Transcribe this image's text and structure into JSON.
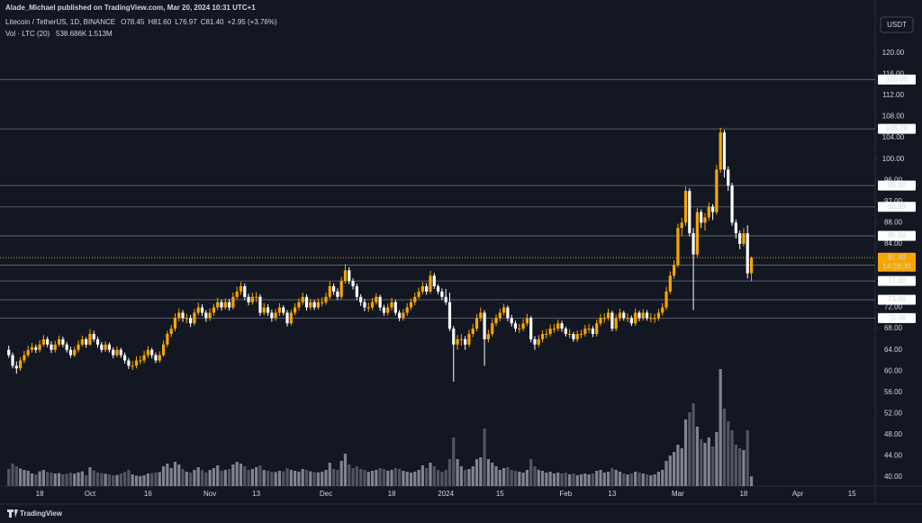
{
  "header": {
    "publisher": "Alade_Michael published on TradingView.com, Mar 20, 2024 10:31 UTC+1",
    "currency_button": "USDT",
    "footer_logo": "TradingView"
  },
  "chart_data": {
    "type": "candlestick",
    "title": "Litecoin / TetherUS, 1D, BINANCE",
    "legend": [
      {
        "key": "O",
        "value": "78.45"
      },
      {
        "key": "H",
        "value": "81.60"
      },
      {
        "key": "L",
        "value": "76.97"
      },
      {
        "key": "C",
        "value": "81.40"
      }
    ],
    "change": "+2.95 (+3.76%)",
    "volume_legend": {
      "name": "Vol · LTC (20)",
      "last": "538.686K",
      "ma": "1.513M"
    },
    "up_color": "#f7a600",
    "down_color": "#ffffff",
    "volume_up_color": "#9598a1",
    "volume_down_color": "#5d606b",
    "grid": false,
    "ylim": [
      38.3,
      130
    ],
    "xlim": [
      -1.1,
      224
    ],
    "yticks": [
      {
        "value": 40,
        "label": "40.00"
      },
      {
        "value": 44,
        "label": "44.00"
      },
      {
        "value": 48,
        "label": "48.00"
      },
      {
        "value": 52,
        "label": "52.00"
      },
      {
        "value": 56,
        "label": "56.00"
      },
      {
        "value": 60,
        "label": "60.00"
      },
      {
        "value": 64,
        "label": "64.00"
      },
      {
        "value": 68,
        "label": "68.00"
      },
      {
        "value": 72,
        "label": "72.00"
      },
      {
        "value": 84,
        "label": "84.00"
      },
      {
        "value": 88,
        "label": "88.00"
      },
      {
        "value": 92,
        "label": "92.00"
      },
      {
        "value": 96,
        "label": "96.00"
      },
      {
        "value": 100,
        "label": "100.00"
      },
      {
        "value": 104,
        "label": "104.00"
      },
      {
        "value": 108,
        "label": "108.00"
      },
      {
        "value": 112,
        "label": "112.00"
      },
      {
        "value": 116,
        "label": "116.00"
      },
      {
        "value": 120,
        "label": "120.00"
      }
    ],
    "xticks": [
      {
        "value": 8,
        "label": "18"
      },
      {
        "value": 21,
        "label": "Oct"
      },
      {
        "value": 36,
        "label": "16"
      },
      {
        "value": 52,
        "label": "Nov"
      },
      {
        "value": 64,
        "label": "13"
      },
      {
        "value": 82,
        "label": "Dec"
      },
      {
        "value": 99,
        "label": "18"
      },
      {
        "value": 113,
        "label": "2024"
      },
      {
        "value": 127,
        "label": "15"
      },
      {
        "value": 144,
        "label": "Feb"
      },
      {
        "value": 156,
        "label": "13"
      },
      {
        "value": 173,
        "label": "Mar"
      },
      {
        "value": 190,
        "label": "18"
      },
      {
        "value": 204,
        "label": "Apr"
      },
      {
        "value": 218,
        "label": "15"
      }
    ],
    "levels": [
      {
        "value": 115,
        "label": "115.00",
        "color": "#ffffff"
      },
      {
        "value": 105.7,
        "label": "105.70",
        "color": "#ffffff"
      },
      {
        "value": 95,
        "label": "95.00",
        "color": "#ffffff"
      },
      {
        "value": 90.99,
        "label": "90.99",
        "color": "#ffffff"
      },
      {
        "value": 85.5,
        "label": "85.50",
        "color": "#ffffff"
      },
      {
        "value": 80,
        "label": "80.00",
        "color": "#ffe0b2"
      },
      {
        "value": 77,
        "label": "77.00",
        "color": "#ffffff"
      },
      {
        "value": 73.46,
        "label": "73.46",
        "color": "#ffffff"
      },
      {
        "value": 70,
        "label": "70.00",
        "color": "#ffffff"
      }
    ],
    "last_price": {
      "value": 81.4,
      "label": "81.40",
      "countdown": "14:28:30",
      "color": "#f7a600"
    },
    "ohlc": [
      [
        64,
        64.8,
        62.5,
        63
      ],
      [
        63,
        63.5,
        60.5,
        61
      ],
      [
        61,
        61.8,
        59.5,
        60.5
      ],
      [
        60.5,
        62.6,
        60,
        62
      ],
      [
        62,
        63.8,
        61.5,
        63
      ],
      [
        63,
        64.8,
        62.6,
        64
      ],
      [
        64,
        65.3,
        63.5,
        64.5
      ],
      [
        64.5,
        65,
        63.4,
        64
      ],
      [
        64,
        65.8,
        63.5,
        65
      ],
      [
        65,
        66.8,
        64.6,
        66
      ],
      [
        66,
        66.5,
        64.5,
        65
      ],
      [
        65,
        65.6,
        63.4,
        64
      ],
      [
        64,
        65.7,
        63.5,
        65
      ],
      [
        65,
        66.7,
        64.6,
        66
      ],
      [
        66,
        66.5,
        64.5,
        65
      ],
      [
        65,
        65.5,
        63.5,
        64
      ],
      [
        64,
        64.6,
        62.5,
        63
      ],
      [
        63,
        64.6,
        62.6,
        64
      ],
      [
        64,
        65.8,
        63.5,
        65
      ],
      [
        65,
        66.7,
        64.6,
        66
      ],
      [
        66,
        66.4,
        64.4,
        65
      ],
      [
        65,
        67.9,
        64.8,
        67
      ],
      [
        67,
        67.6,
        65.5,
        66
      ],
      [
        66,
        66.5,
        64.4,
        65
      ],
      [
        65,
        65.5,
        63.5,
        64
      ],
      [
        64,
        65.6,
        63.6,
        65
      ],
      [
        65,
        65.4,
        63.5,
        64
      ],
      [
        64,
        64.5,
        62.4,
        63
      ],
      [
        63,
        64.7,
        62.6,
        64
      ],
      [
        64,
        64.4,
        62.5,
        63
      ],
      [
        63,
        63.5,
        61.4,
        62
      ],
      [
        62,
        62.5,
        60.4,
        61
      ],
      [
        61,
        61.9,
        60.2,
        61
      ],
      [
        61,
        62.8,
        60.5,
        62
      ],
      [
        62,
        62.9,
        61.3,
        62
      ],
      [
        62,
        63.8,
        61.5,
        63
      ],
      [
        63,
        64.7,
        62.5,
        64
      ],
      [
        64,
        64.4,
        62.4,
        63
      ],
      [
        63,
        63.5,
        61.5,
        62
      ],
      [
        62,
        63.7,
        61.6,
        63
      ],
      [
        63,
        65.8,
        62.7,
        65
      ],
      [
        65,
        67.6,
        64.5,
        67
      ],
      [
        67,
        68.7,
        66.4,
        68
      ],
      [
        68,
        70.9,
        67.5,
        70
      ],
      [
        70,
        71.8,
        69.4,
        71
      ],
      [
        71,
        71.5,
        69.3,
        70
      ],
      [
        70,
        70.8,
        69,
        70
      ],
      [
        70,
        70.6,
        68.3,
        69
      ],
      [
        69,
        71.7,
        68.6,
        71
      ],
      [
        71,
        72.9,
        70.5,
        72
      ],
      [
        72,
        72.6,
        70.4,
        71
      ],
      [
        71,
        71.5,
        69.3,
        70
      ],
      [
        70,
        71.8,
        69.5,
        71
      ],
      [
        71,
        72.7,
        70.4,
        72
      ],
      [
        72,
        73.8,
        71.5,
        73
      ],
      [
        73,
        73.5,
        71.4,
        72
      ],
      [
        72,
        73.7,
        71.6,
        73
      ],
      [
        73,
        73.6,
        71.4,
        72
      ],
      [
        72,
        74.8,
        71.6,
        74
      ],
      [
        74,
        75.9,
        73.5,
        75
      ],
      [
        75,
        76.8,
        74.4,
        76
      ],
      [
        76,
        76.5,
        73.4,
        74
      ],
      [
        74,
        74.6,
        72.4,
        73
      ],
      [
        73,
        74.8,
        72.5,
        74
      ],
      [
        74,
        74.9,
        73,
        74
      ],
      [
        74,
        74.5,
        70.4,
        71
      ],
      [
        71,
        72.8,
        70.5,
        72
      ],
      [
        72,
        72.6,
        70.4,
        71
      ],
      [
        71,
        71.6,
        69.3,
        70
      ],
      [
        70,
        71.7,
        69.5,
        71
      ],
      [
        71,
        72.8,
        70.4,
        72
      ],
      [
        72,
        72.4,
        70.5,
        71
      ],
      [
        71,
        71.5,
        68.4,
        69
      ],
      [
        69,
        71.6,
        68.6,
        71
      ],
      [
        71,
        72.8,
        70.5,
        72
      ],
      [
        72,
        73.7,
        71.4,
        73
      ],
      [
        73,
        74.8,
        72.5,
        74
      ],
      [
        74,
        74.5,
        71.4,
        72
      ],
      [
        72,
        73.6,
        71.5,
        73
      ],
      [
        73,
        73.4,
        71.5,
        72
      ],
      [
        72,
        73.7,
        71.6,
        73
      ],
      [
        73,
        73.9,
        72.2,
        73
      ],
      [
        73,
        74.8,
        72.5,
        74
      ],
      [
        74,
        76.9,
        73.6,
        76
      ],
      [
        76,
        76.5,
        74.4,
        75
      ],
      [
        75,
        75.6,
        73.4,
        74
      ],
      [
        74,
        77.8,
        73.5,
        77
      ],
      [
        77,
        80.2,
        76.5,
        79
      ],
      [
        79,
        79.6,
        76.4,
        77
      ],
      [
        77,
        77.5,
        75.4,
        76
      ],
      [
        76,
        76.5,
        73.4,
        74
      ],
      [
        74,
        74.5,
        72.3,
        73
      ],
      [
        73,
        73.6,
        71.3,
        72
      ],
      [
        72,
        72.9,
        71.2,
        72
      ],
      [
        72,
        73.8,
        71.5,
        73
      ],
      [
        73,
        74.7,
        72.5,
        74
      ],
      [
        74,
        74.4,
        71.4,
        72
      ],
      [
        72,
        72.5,
        70.4,
        71
      ],
      [
        71,
        72.7,
        70.5,
        72
      ],
      [
        72,
        73.8,
        71.4,
        73
      ],
      [
        73,
        73.4,
        70.5,
        71
      ],
      [
        71,
        71.5,
        69.4,
        70
      ],
      [
        70,
        71.7,
        69.5,
        71
      ],
      [
        71,
        72.8,
        70.4,
        72
      ],
      [
        72,
        73.7,
        71.5,
        73
      ],
      [
        73,
        74.8,
        72.4,
        74
      ],
      [
        74,
        75.7,
        73.6,
        75
      ],
      [
        75,
        76.8,
        74.5,
        76
      ],
      [
        76,
        76.6,
        74.4,
        75
      ],
      [
        75,
        78.9,
        74.6,
        78
      ],
      [
        78,
        78.5,
        75.5,
        76
      ],
      [
        76,
        76.4,
        74.5,
        75
      ],
      [
        75,
        75.6,
        73.4,
        74
      ],
      [
        74,
        75.5,
        72.5,
        73
      ],
      [
        73,
        74.8,
        67.5,
        68
      ],
      [
        68,
        68.5,
        58,
        65
      ],
      [
        65,
        66.8,
        64,
        66
      ],
      [
        66,
        67,
        64.8,
        66
      ],
      [
        66,
        66.6,
        64,
        65
      ],
      [
        65,
        67.8,
        64.5,
        67
      ],
      [
        67,
        68.9,
        66.4,
        68
      ],
      [
        68,
        70.8,
        67.5,
        70
      ],
      [
        70,
        72,
        69.4,
        71
      ],
      [
        71,
        71.5,
        61,
        66
      ],
      [
        66,
        67.8,
        65.4,
        67
      ],
      [
        67,
        69.8,
        66.5,
        69
      ],
      [
        69,
        70.7,
        68.5,
        70
      ],
      [
        70,
        71.8,
        69.4,
        71
      ],
      [
        71,
        72.7,
        70.5,
        72
      ],
      [
        72,
        72.4,
        69.4,
        70
      ],
      [
        70,
        70.6,
        68.4,
        69
      ],
      [
        69,
        69.5,
        67.4,
        68
      ],
      [
        68,
        68.9,
        67.2,
        68
      ],
      [
        68,
        69.8,
        67.5,
        69
      ],
      [
        69,
        70.8,
        68.5,
        70
      ],
      [
        70,
        70.4,
        65.4,
        66
      ],
      [
        66,
        66.6,
        64,
        65
      ],
      [
        65,
        66.8,
        64.5,
        66
      ],
      [
        66,
        67.7,
        65.4,
        67
      ],
      [
        67,
        67.9,
        66.2,
        67
      ],
      [
        67,
        68.8,
        66.5,
        68
      ],
      [
        68,
        68.9,
        67.2,
        68
      ],
      [
        68,
        69.7,
        67.5,
        69
      ],
      [
        69,
        69.5,
        67.4,
        68
      ],
      [
        68,
        68.4,
        66.5,
        67
      ],
      [
        67,
        67.9,
        66.2,
        67
      ],
      [
        67,
        67.4,
        65.5,
        66
      ],
      [
        66,
        67.7,
        65.5,
        67
      ],
      [
        67,
        67.8,
        66.2,
        67
      ],
      [
        67,
        68.7,
        66.5,
        68
      ],
      [
        68,
        68.9,
        67.2,
        68
      ],
      [
        68,
        68.5,
        66.4,
        67
      ],
      [
        67,
        69.7,
        66.5,
        69
      ],
      [
        69,
        70.8,
        68.5,
        70
      ],
      [
        70,
        70.9,
        69.1,
        70
      ],
      [
        70,
        71.8,
        69.5,
        71
      ],
      [
        71,
        71.4,
        67.5,
        68
      ],
      [
        68,
        70.7,
        67.5,
        70
      ],
      [
        70,
        71.8,
        69.4,
        71
      ],
      [
        71,
        71.4,
        69.5,
        70
      ],
      [
        70,
        70.9,
        69.2,
        70
      ],
      [
        70,
        70.5,
        68.5,
        69
      ],
      [
        69,
        71.8,
        68.5,
        71
      ],
      [
        71,
        71.4,
        69.4,
        70
      ],
      [
        70,
        71.7,
        69.5,
        71
      ],
      [
        71,
        71.5,
        69.5,
        70
      ],
      [
        70,
        70.9,
        69.2,
        70
      ],
      [
        70,
        70.8,
        69.1,
        70
      ],
      [
        70,
        71.7,
        69.5,
        71
      ],
      [
        71,
        72.8,
        70.5,
        72
      ],
      [
        72,
        75.9,
        71.5,
        75
      ],
      [
        75,
        78.8,
        74.5,
        78
      ],
      [
        78,
        80.9,
        77.4,
        80
      ],
      [
        80,
        87.8,
        79.5,
        87
      ],
      [
        87,
        88.9,
        85.5,
        88
      ],
      [
        88,
        94.8,
        87.4,
        94
      ],
      [
        94,
        94.5,
        85.4,
        86
      ],
      [
        86,
        87,
        71.5,
        82
      ],
      [
        82,
        90.8,
        81.5,
        90
      ],
      [
        90,
        90.5,
        87,
        88
      ],
      [
        88,
        89.8,
        86.5,
        89
      ],
      [
        89,
        91.8,
        88.4,
        91
      ],
      [
        91,
        91.5,
        88.5,
        90
      ],
      [
        90,
        98.9,
        89.5,
        98
      ],
      [
        98,
        105.9,
        97.4,
        105
      ],
      [
        105,
        105.5,
        96.5,
        98
      ],
      [
        98,
        98.6,
        94,
        95
      ],
      [
        95,
        95.5,
        87.4,
        88
      ],
      [
        88,
        88.6,
        85,
        86
      ],
      [
        86,
        86.5,
        83,
        84
      ],
      [
        84,
        87,
        83.5,
        86
      ],
      [
        86,
        87.5,
        77.5,
        78.45
      ],
      [
        78.45,
        81.6,
        76.97,
        81.4
      ]
    ],
    "volume": [
      950000,
      1250000,
      1100000,
      980000,
      900000,
      850000,
      700000,
      650000,
      820000,
      900000,
      780000,
      760000,
      700000,
      720000,
      650000,
      680000,
      740000,
      690000,
      760000,
      820000,
      600000,
      1050000,
      880000,
      760000,
      720000,
      690000,
      650000,
      600000,
      620000,
      700000,
      780000,
      900000,
      650000,
      580000,
      560000,
      600000,
      700000,
      720000,
      760000,
      780000,
      1100000,
      1250000,
      1000000,
      1350000,
      1200000,
      950000,
      800000,
      750000,
      900000,
      1050000,
      880000,
      760000,
      900000,
      1000000,
      1150000,
      850000,
      900000,
      950000,
      1200000,
      1350000,
      1250000,
      1100000,
      900000,
      950000,
      1050000,
      1150000,
      900000,
      850000,
      800000,
      780000,
      850000,
      820000,
      1000000,
      900000,
      850000,
      800000,
      950000,
      900000,
      820000,
      780000,
      760000,
      800000,
      900000,
      1300000,
      950000,
      900000,
      1400000,
      1800000,
      1200000,
      1000000,
      1100000,
      950000,
      900000,
      800000,
      850000,
      900000,
      1000000,
      950000,
      850000,
      900000,
      1000000,
      950000,
      850000,
      800000,
      750000,
      800000,
      900000,
      1150000,
      1000000,
      1300000,
      1100000,
      900000,
      800000,
      900000,
      1500000,
      2700000,
      1500000,
      1100000,
      900000,
      950000,
      1100000,
      1500000,
      1600000,
      3200000,
      1500000,
      1300000,
      1100000,
      900000,
      1000000,
      1050000,
      900000,
      850000,
      800000,
      750000,
      900000,
      1500000,
      1100000,
      900000,
      850000,
      750000,
      800000,
      700000,
      750000,
      700000,
      750000,
      650000,
      700000,
      600000,
      650000,
      700000,
      650000,
      700000,
      850000,
      900000,
      750000,
      800000,
      1000000,
      900000,
      800000,
      700000,
      650000,
      700000,
      800000,
      750000,
      700000,
      650000,
      600000,
      650000,
      800000,
      900000,
      1400000,
      1700000,
      1900000,
      2300000,
      2100000,
      3700000,
      4100000,
      4600000,
      3300000,
      2600000,
      2400000,
      2700000,
      2200000,
      3000000,
      6500000,
      4300000,
      3600000,
      3100000,
      2300000,
      2100000,
      2000000,
      3100000,
      538686
    ]
  }
}
